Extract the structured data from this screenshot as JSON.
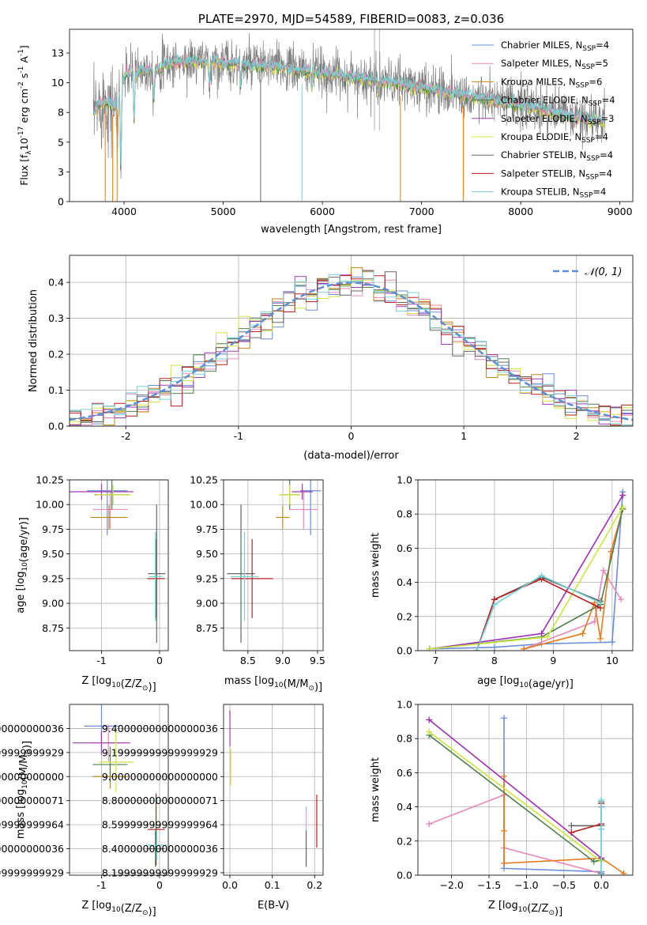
{
  "colors": {
    "Chabrier MILES": "#6a8fdd",
    "Salpeter MILES": "#e889b7",
    "Kroupa MILES": "#c2861c",
    "Chabrier ELODIE": "#4f7f4f",
    "Salpeter ELODIE": "#a03bb5",
    "Kroupa ELODIE": "#d8e048",
    "Chabrier STELIB": "#666666",
    "Salpeter STELIB": "#b81f1f",
    "Kroupa STELIB": "#75d1d6",
    "accent_orange": "#e87b1e",
    "accent_purple": "#9b2fb0",
    "accent_yellowgreen": "#c8e63c",
    "normal_curve": "#5b8fd6"
  },
  "chart_data": [
    {
      "id": "spectrum",
      "type": "line",
      "title": "PLATE=2970, MJD=54589, FIBERID=0083, z=0.036",
      "xlabel": "wavelength [Angstrom, rest frame]",
      "ylabel": "Flux [f",
      "ylabel_sub": "λ",
      "ylabel_mid": "10",
      "ylabel_sup1": "-17",
      "ylabel_mid2": " erg cm",
      "ylabel_sup2": "-2",
      "ylabel_mid3": " s",
      "ylabel_sup3": "-1",
      "ylabel_end": " A",
      "ylabel_sup4": "-1",
      "ylabel_close": "]",
      "xlim": [
        3450,
        9130
      ],
      "ylim": [
        0,
        14.5
      ],
      "xticks": [
        4000,
        5000,
        6000,
        7000,
        8000,
        9000
      ],
      "yticks": [
        0.0,
        2.5,
        5.0,
        7.5,
        10.0,
        12.5
      ],
      "grid": false,
      "legend_position": "top-right",
      "legend": [
        {
          "name": "Chabrier MILES",
          "nssp": "4"
        },
        {
          "name": "Salpeter MILES",
          "nssp": "5"
        },
        {
          "name": "Kroupa MILES",
          "nssp": "6"
        },
        {
          "name": "Chabrier ELODIE",
          "nssp": "4"
        },
        {
          "name": "Salpeter ELODIE",
          "nssp": "3"
        },
        {
          "name": "Kroupa ELODIE",
          "nssp": "4"
        },
        {
          "name": "Chabrier STELIB",
          "nssp": "4"
        },
        {
          "name": "Salpeter STELIB",
          "nssp": "4"
        },
        {
          "name": "Kroupa STELIB",
          "nssp": "4"
        }
      ],
      "continuum": [
        [
          3700,
          7.5
        ],
        [
          3800,
          8.6
        ],
        [
          3900,
          8.0
        ],
        [
          3970,
          9.4
        ],
        [
          4000,
          10.6
        ],
        [
          4100,
          11.0
        ],
        [
          4300,
          11.2
        ],
        [
          4500,
          11.7
        ],
        [
          4800,
          11.8
        ],
        [
          5000,
          11.7
        ],
        [
          5200,
          11.5
        ],
        [
          5500,
          11.4
        ],
        [
          5800,
          11.0
        ],
        [
          6100,
          10.7
        ],
        [
          6400,
          10.4
        ],
        [
          6700,
          10.0
        ],
        [
          7000,
          9.6
        ],
        [
          7300,
          9.2
        ],
        [
          7600,
          8.7
        ],
        [
          7900,
          8.2
        ],
        [
          8200,
          7.8
        ],
        [
          8500,
          7.2
        ],
        [
          8850,
          6.7
        ]
      ],
      "absorption": [
        [
          3933,
          4.5
        ],
        [
          3968,
          3.0
        ],
        [
          4102,
          7.0
        ],
        [
          4300,
          8.5
        ],
        [
          4861,
          9.5
        ],
        [
          5175,
          9.6
        ],
        [
          5890,
          9.8
        ],
        [
          6563,
          9.0
        ],
        [
          8542,
          6.4
        ]
      ],
      "noise_amplitude": 2.2,
      "masked_spikes": [
        {
          "x": 3810,
          "color_key": "accent_orange"
        },
        {
          "x": 3885,
          "color_key": "accent_orange"
        },
        {
          "x": 3930,
          "color_key": "accent_orange"
        },
        {
          "x": 5377,
          "color_key": "Chabrier STELIB"
        },
        {
          "x": 5794,
          "color_key": "Kroupa STELIB"
        },
        {
          "x": 6787,
          "color_key": "Kroupa MILES"
        },
        {
          "x": 7420,
          "color_key": "accent_orange"
        }
      ]
    },
    {
      "id": "residuals",
      "type": "line",
      "xlabel": "(data-model)/error",
      "ylabel": "Normed distribution",
      "xlim": [
        -2.5,
        2.5
      ],
      "ylim": [
        0,
        0.475
      ],
      "xticks": [
        -2,
        -1,
        0,
        1,
        2
      ],
      "yticks": [
        0.0,
        0.1,
        0.2,
        0.3,
        0.4
      ],
      "grid": true,
      "legend_label": "𝒩(0, 1)",
      "legend_position": "top-right",
      "bin_width": 0.1,
      "jitter": 0.035
    },
    {
      "id": "Z-age",
      "type": "scatter",
      "xlabel": "Z [log",
      "xlabel_sub": "10",
      "xlabel_expr": "(Z/Z",
      "xlabel_sun": "⊙",
      "xlabel_end": ")]",
      "ylabel": "age  [log",
      "ylabel_sub": "10",
      "ylabel_end": "(age/yr)]",
      "xlim": [
        -1.55,
        0.15
      ],
      "ylim": [
        8.52,
        10.25
      ],
      "xticks": [
        -1,
        0
      ],
      "yticks": [
        8.75,
        9.0,
        9.25,
        9.5,
        9.75,
        10.0,
        10.25
      ],
      "grid": true,
      "points": [
        {
          "key": "Chabrier MILES",
          "x": -0.9,
          "y": 10.14,
          "xerr": 0.35,
          "yerr": 0.45
        },
        {
          "key": "Salpeter MILES",
          "x": -0.85,
          "y": 9.95,
          "xerr": 0.3,
          "yerr": 0.2
        },
        {
          "key": "Kroupa MILES",
          "x": -0.87,
          "y": 9.87,
          "xerr": 0.32,
          "yerr": 0.12
        },
        {
          "key": "Chabrier ELODIE",
          "x": -0.82,
          "y": 10.1,
          "xerr": 0.3,
          "yerr": 0.15
        },
        {
          "key": "Salpeter ELODIE",
          "x": -1.0,
          "y": 10.13,
          "xerr": 0.55,
          "yerr": 0.08
        },
        {
          "key": "Kroupa ELODIE",
          "x": -0.8,
          "y": 10.1,
          "xerr": 0.3,
          "yerr": 0.1
        },
        {
          "key": "Chabrier STELIB",
          "x": -0.05,
          "y": 9.3,
          "xerr": 0.15,
          "yerr": 0.7
        },
        {
          "key": "Salpeter STELIB",
          "x": -0.06,
          "y": 9.25,
          "xerr": 0.15,
          "yerr": 0.4
        },
        {
          "key": "Kroupa STELIB",
          "x": -0.07,
          "y": 9.27,
          "xerr": 0.12,
          "yerr": 0.45
        }
      ]
    },
    {
      "id": "mass-age",
      "type": "scatter",
      "xlabel": "mass [log",
      "xlabel_sub": "10",
      "xlabel_expr": "(M/M",
      "xlabel_sun": "⊙",
      "xlabel_end": ")]",
      "xlim": [
        8.15,
        9.58
      ],
      "ylim": [
        8.52,
        10.25
      ],
      "xticks": [
        8.5,
        9.0,
        9.5
      ],
      "yticks": [
        8.75,
        9.0,
        9.25,
        9.5,
        9.75,
        10.0,
        10.25
      ],
      "grid": true,
      "points": [
        {
          "key": "Chabrier MILES",
          "x": 9.4,
          "y": 10.14,
          "xerr": 0.15,
          "yerr": 0.45
        },
        {
          "key": "Salpeter MILES",
          "x": 9.3,
          "y": 9.95,
          "xerr": 0.2,
          "yerr": 0.2
        },
        {
          "key": "Kroupa MILES",
          "x": 9.0,
          "y": 9.87,
          "xerr": 0.1,
          "yerr": 0.12
        },
        {
          "key": "Chabrier ELODIE",
          "x": 9.1,
          "y": 10.1,
          "xerr": 0.15,
          "yerr": 0.15
        },
        {
          "key": "Salpeter ELODIE",
          "x": 9.28,
          "y": 10.13,
          "xerr": 0.15,
          "yerr": 0.08
        },
        {
          "key": "Kroupa ELODIE",
          "x": 9.1,
          "y": 10.1,
          "xerr": 0.15,
          "yerr": 0.1
        },
        {
          "key": "Chabrier STELIB",
          "x": 8.4,
          "y": 9.3,
          "xerr": 0.2,
          "yerr": 0.7
        },
        {
          "key": "Salpeter STELIB",
          "x": 8.56,
          "y": 9.25,
          "xerr": 0.3,
          "yerr": 0.4
        },
        {
          "key": "Kroupa STELIB",
          "x": 8.45,
          "y": 9.27,
          "xerr": 0.2,
          "yerr": 0.45
        }
      ]
    },
    {
      "id": "weight-age",
      "type": "line",
      "xlabel": "age  [log",
      "xlabel_sub": "10",
      "xlabel_end": "(age/yr)]",
      "ylabel": "mass weight",
      "xlim": [
        6.7,
        10.35
      ],
      "ylim": [
        0,
        1.0
      ],
      "xticks": [
        7,
        8,
        9,
        10
      ],
      "yticks": [
        0.0,
        0.2,
        0.4,
        0.6,
        0.8,
        1.0
      ],
      "grid": true,
      "series": [
        {
          "key": "Chabrier MILES",
          "x": [
            6.9,
            8.0,
            8.8,
            10.0,
            10.18
          ],
          "y": [
            0.01,
            0.02,
            0.04,
            0.05,
            0.93
          ]
        },
        {
          "key": "Salpeter MILES",
          "x": [
            8.5,
            9.7,
            9.85,
            10.15
          ],
          "y": [
            0.01,
            0.17,
            0.47,
            0.3
          ]
        },
        {
          "key": "accent_orange",
          "x": [
            8.5,
            9.5,
            9.7,
            9.8,
            9.98,
            10.18
          ],
          "y": [
            0.01,
            0.1,
            0.28,
            0.07,
            0.58,
            0.83
          ]
        },
        {
          "key": "Chabrier ELODIE",
          "x": [
            6.9,
            8.8,
            9.8,
            10.18
          ],
          "y": [
            0.01,
            0.08,
            0.27,
            0.83
          ]
        },
        {
          "key": "accent_purple",
          "x": [
            6.9,
            8.8,
            10.18
          ],
          "y": [
            0.01,
            0.1,
            0.91
          ]
        },
        {
          "key": "accent_yellowgreen",
          "x": [
            6.9,
            8.9,
            10.18
          ],
          "y": [
            0.01,
            0.08,
            0.84
          ]
        },
        {
          "key": "Chabrier STELIB",
          "x": [
            7.7,
            8.0,
            8.8,
            9.8
          ],
          "y": [
            0.0,
            0.3,
            0.43,
            0.29
          ]
        },
        {
          "key": "Salpeter STELIB",
          "x": [
            7.7,
            8.0,
            8.8,
            9.8
          ],
          "y": [
            0.0,
            0.3,
            0.42,
            0.25
          ]
        },
        {
          "key": "Kroupa STELIB",
          "x": [
            7.7,
            8.0,
            8.8,
            9.8
          ],
          "y": [
            0.0,
            0.27,
            0.44,
            0.28
          ]
        }
      ]
    },
    {
      "id": "Z-mass",
      "type": "scatter",
      "xlabel": "Z [log",
      "xlabel_sub": "10",
      "xlabel_expr": "(Z/Z",
      "xlabel_sun": "⊙",
      "xlabel_end": ")]",
      "ylabel": "mass [log",
      "ylabel_sub": "10",
      "ylabel_expr": "(M/M",
      "ylabel_sun": "⊙",
      "ylabel_end": ")]",
      "xlim": [
        -1.55,
        0.15
      ],
      "ylim": [
        8.18,
        9.6
      ],
      "xticks": [
        -1,
        0
      ],
      "yticks": [
        8.2,
        8.4,
        8.6,
        8.8,
        9.0,
        9.2,
        9.4
      ],
      "grid": true,
      "points": [
        {
          "key": "Chabrier MILES",
          "x": -1.0,
          "y": 9.42,
          "xerr": 0.3,
          "yerr": 0.2
        },
        {
          "key": "Salpeter MILES",
          "x": -0.88,
          "y": 9.28,
          "xerr": 0.3,
          "yerr": 0.15
        },
        {
          "key": "Kroupa MILES",
          "x": -0.85,
          "y": 9.0,
          "xerr": 0.3,
          "yerr": 0.1
        },
        {
          "key": "Chabrier ELODIE",
          "x": -0.85,
          "y": 9.1,
          "xerr": 0.3,
          "yerr": 0.15
        },
        {
          "key": "Salpeter ELODIE",
          "x": -1.0,
          "y": 9.28,
          "xerr": 0.5,
          "yerr": 0.1
        },
        {
          "key": "Kroupa ELODIE",
          "x": -0.75,
          "y": 9.12,
          "xerr": 0.3,
          "yerr": 0.25
        },
        {
          "key": "Chabrier STELIB",
          "x": -0.07,
          "y": 8.4,
          "xerr": 0.15,
          "yerr": 0.15
        },
        {
          "key": "Salpeter STELIB",
          "x": -0.06,
          "y": 8.56,
          "xerr": 0.15,
          "yerr": 0.3
        },
        {
          "key": "Kroupa STELIB",
          "x": -0.05,
          "y": 8.43,
          "xerr": 0.18,
          "yerr": 0.12
        }
      ]
    },
    {
      "id": "ebv-mass",
      "type": "scatter",
      "xlabel": "E(B-V)",
      "xlim": [
        -0.015,
        0.22
      ],
      "ylim": [
        8.18,
        9.6
      ],
      "xticks": [
        0.0,
        0.1,
        0.2
      ],
      "yticks": [
        8.2,
        8.4,
        8.6,
        8.8,
        9.0,
        9.2,
        9.4
      ],
      "grid": true,
      "points": [
        {
          "key": "Salpeter ELODIE",
          "x": 0.0,
          "y": 9.4,
          "xerr": 0,
          "yerr": 0.15
        },
        {
          "key": "Kroupa ELODIE",
          "x": 0.002,
          "y": 9.08,
          "xerr": 0,
          "yerr": 0.15
        },
        {
          "key": "Kroupa STELIB",
          "x": 0.18,
          "y": 8.5,
          "xerr": 0,
          "yerr": 0.25
        },
        {
          "key": "Chabrier STELIB",
          "x": 0.18,
          "y": 8.4,
          "xerr": 0,
          "yerr": 0.15
        },
        {
          "key": "Salpeter STELIB",
          "x": 0.205,
          "y": 8.63,
          "xerr": 0,
          "yerr": 0.22
        }
      ]
    },
    {
      "id": "weight-Z",
      "type": "line",
      "xlabel": "Z [log",
      "xlabel_sub": "10",
      "xlabel_expr": "(Z/Z",
      "xlabel_sun": "⊙",
      "xlabel_end": ")]",
      "ylabel": "mass weight",
      "xlim": [
        -2.45,
        0.42
      ],
      "ylim": [
        0,
        1.0
      ],
      "xticks": [
        -2.0,
        -1.5,
        -1.0,
        -0.5,
        0.0
      ],
      "yticks": [
        0.0,
        0.2,
        0.4,
        0.6,
        0.8,
        1.0
      ],
      "grid": true,
      "series": [
        {
          "key": "Chabrier MILES",
          "x": [
            -1.3,
            -1.3,
            0.0,
            0.0
          ],
          "y": [
            0.92,
            0.04,
            0.02,
            0.4
          ]
        },
        {
          "key": "Salpeter MILES",
          "x": [
            -2.3,
            -1.3,
            -1.3,
            0.0
          ],
          "y": [
            0.3,
            0.47,
            0.16,
            0.01
          ]
        },
        {
          "key": "accent_orange",
          "x": [
            -1.3,
            -1.3,
            -1.3,
            0.0,
            0.3
          ],
          "y": [
            0.58,
            0.26,
            0.07,
            0.1,
            0.01
          ]
        },
        {
          "key": "Chabrier ELODIE",
          "x": [
            -2.3,
            -0.1,
            0.0
          ],
          "y": [
            0.82,
            0.08,
            0.09
          ]
        },
        {
          "key": "accent_purple",
          "x": [
            -2.3,
            0.0
          ],
          "y": [
            0.91,
            0.1
          ]
        },
        {
          "key": "accent_yellowgreen",
          "x": [
            -2.3,
            0.0
          ],
          "y": [
            0.84,
            0.08
          ]
        },
        {
          "key": "Chabrier STELIB",
          "x": [
            -0.4,
            0.0,
            0.0,
            0.0
          ],
          "y": [
            0.29,
            0.29,
            0.43,
            0.01
          ]
        },
        {
          "key": "Salpeter STELIB",
          "x": [
            -0.4,
            0.0,
            0.0
          ],
          "y": [
            0.25,
            0.3,
            0.42
          ]
        },
        {
          "key": "Kroupa STELIB",
          "x": [
            0.0,
            0.0,
            0.0
          ],
          "y": [
            0.27,
            0.44,
            0.0
          ]
        }
      ]
    }
  ]
}
